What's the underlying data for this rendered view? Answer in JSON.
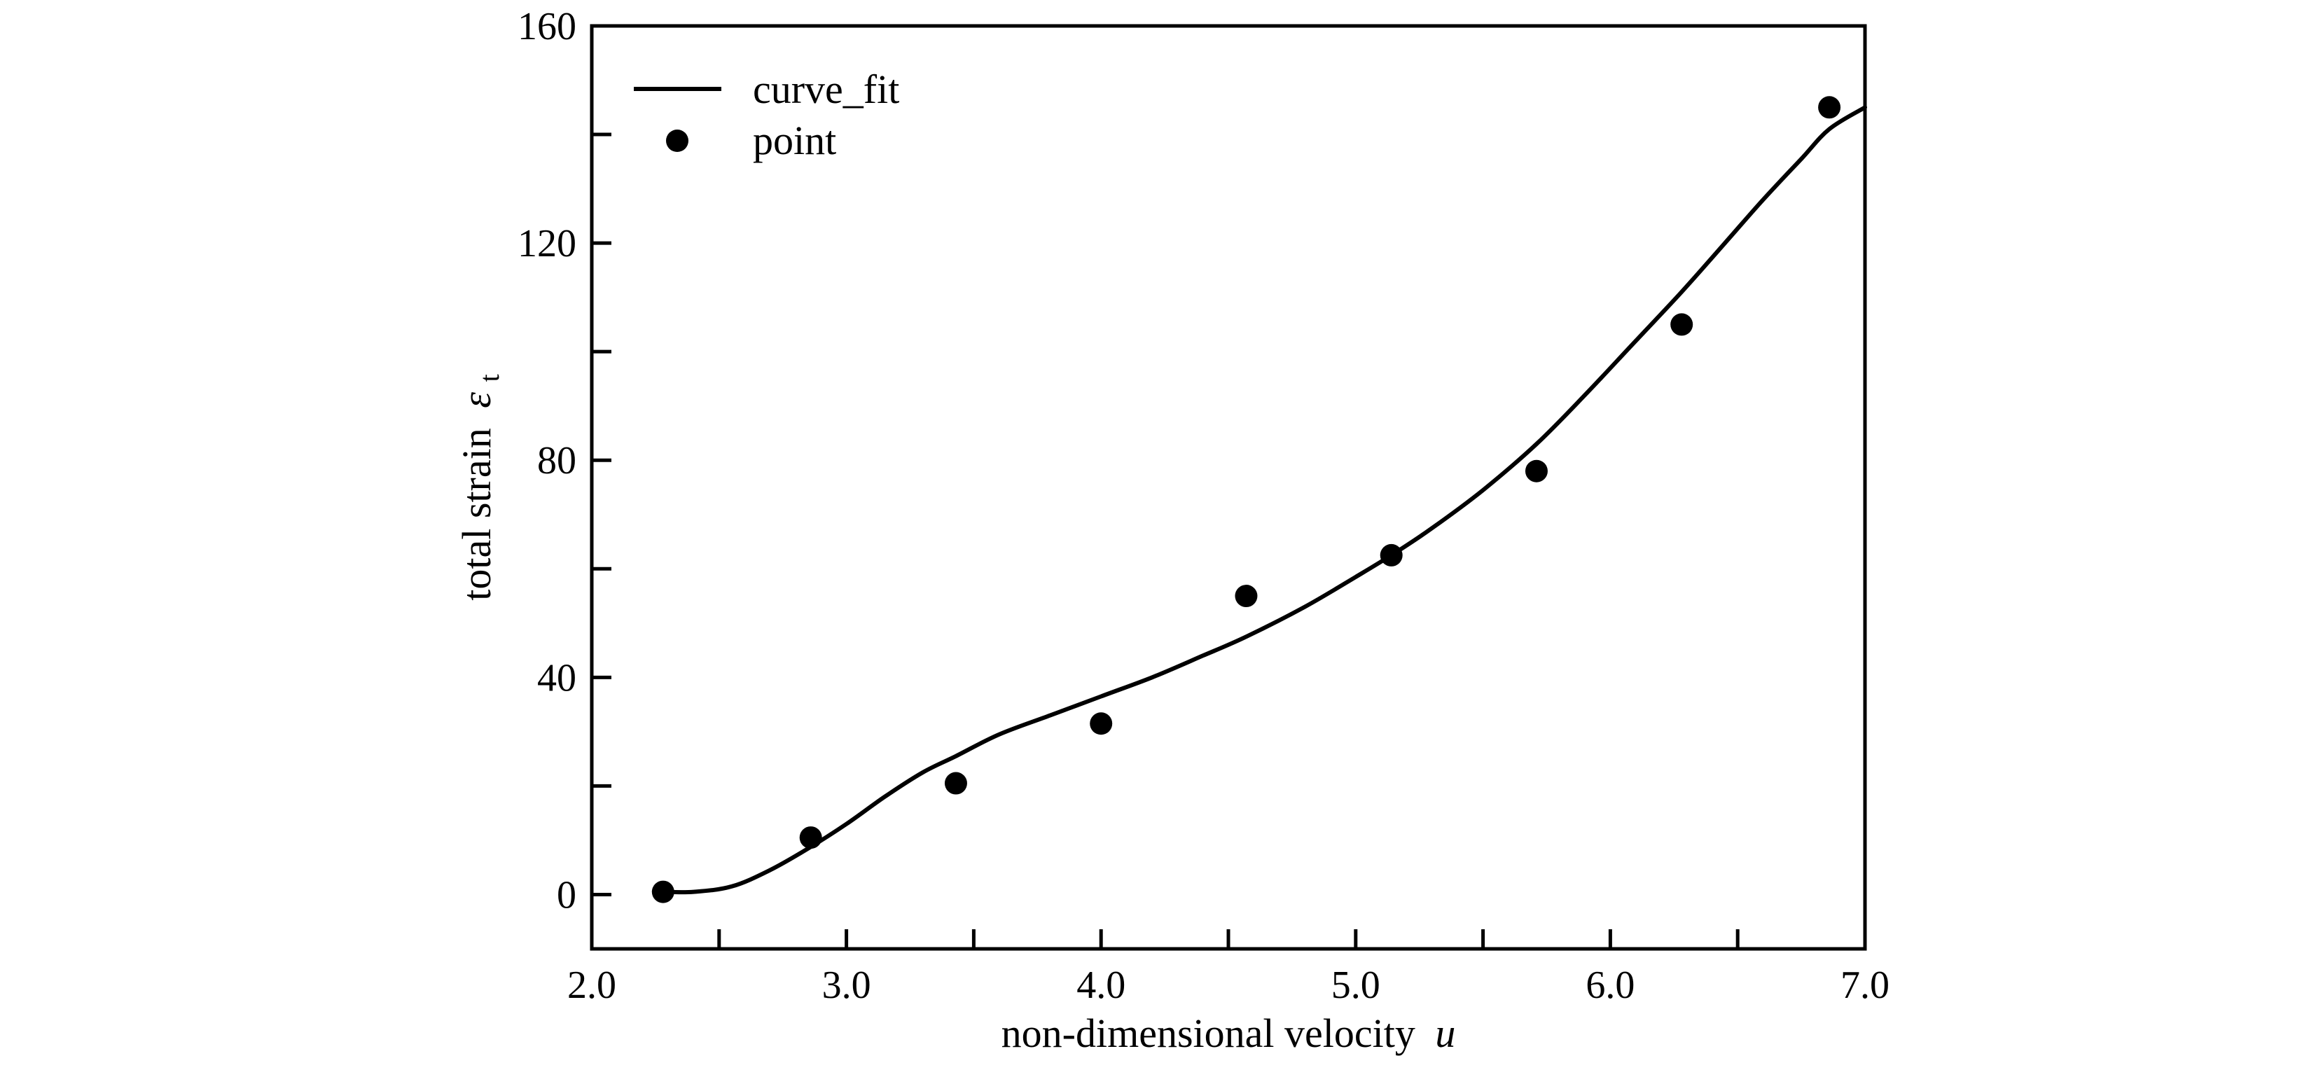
{
  "chart_data": {
    "type": "scatter",
    "title": "",
    "xlabel": "non-dimensional velocity",
    "xlabel_symbol": "u",
    "ylabel": "total strain",
    "ylabel_symbol": "ε",
    "ylabel_subscript": "t",
    "xlim": [
      2.0,
      7.0
    ],
    "ylim": [
      -10,
      160
    ],
    "x_ticks": [
      2.0,
      3.0,
      4.0,
      5.0,
      6.0,
      7.0
    ],
    "x_tick_labels": [
      "2.0",
      "3.0",
      "4.0",
      "5.0",
      "6.0",
      "7.0"
    ],
    "y_ticks": [
      0,
      40,
      80,
      120,
      160
    ],
    "y_tick_labels": [
      "0",
      "40",
      "80",
      "120",
      "160"
    ],
    "grid": false,
    "legend_position": "top-left",
    "series": [
      {
        "name": "curve_fit",
        "kind": "line",
        "color": "#000000",
        "x": [
          2.28,
          2.4,
          2.55,
          2.7,
          2.85,
          3.0,
          3.15,
          3.3,
          3.43,
          3.6,
          3.8,
          4.0,
          4.2,
          4.4,
          4.57,
          4.8,
          5.0,
          5.14,
          5.3,
          5.5,
          5.71,
          5.9,
          6.1,
          6.28,
          6.45,
          6.6,
          6.75,
          6.86,
          7.0
        ],
        "y": [
          0.5,
          0.5,
          1.5,
          4.5,
          8.5,
          13,
          18,
          22.5,
          25.5,
          29.5,
          33,
          36.5,
          40,
          44,
          47.5,
          53,
          58.5,
          62.5,
          67.5,
          74.5,
          83,
          92,
          102,
          111,
          120,
          128,
          135.5,
          141,
          145
        ]
      },
      {
        "name": "point",
        "kind": "scatter",
        "color": "#000000",
        "x": [
          2.28,
          2.86,
          3.43,
          4.0,
          4.57,
          5.14,
          5.71,
          6.28,
          6.86
        ],
        "y": [
          0.5,
          10.5,
          20.5,
          31.5,
          55,
          62.5,
          78,
          105,
          145
        ]
      }
    ]
  }
}
